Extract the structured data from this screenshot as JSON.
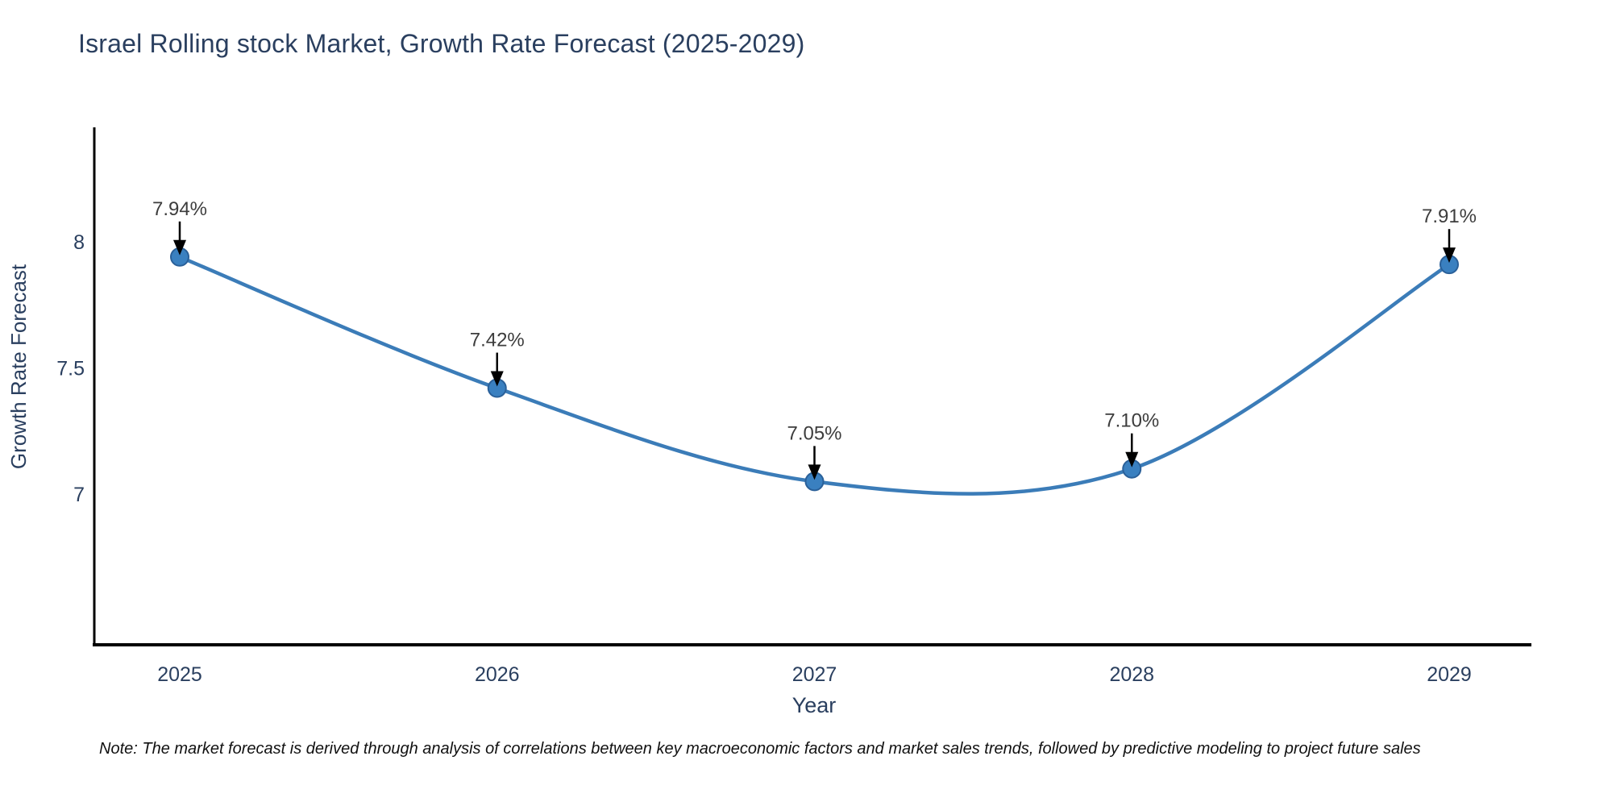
{
  "page": {
    "title": "Israel Rolling stock Market, Growth Rate Forecast (2025-2029)",
    "note": "Note: The market forecast is derived through analysis of correlations between key macroeconomic factors and market sales trends, followed by predictive modeling to project future sales"
  },
  "chart_data": {
    "type": "line",
    "title": "Israel Rolling stock Market, Growth Rate Forecast (2025-2029)",
    "categories": [
      "2025",
      "2026",
      "2027",
      "2028",
      "2029"
    ],
    "series": [
      {
        "name": "Growth Rate Forecast",
        "values": [
          7.94,
          7.42,
          7.05,
          7.1,
          7.91
        ]
      }
    ],
    "point_labels": [
      "7.94%",
      "7.42%",
      "7.05%",
      "7.10%",
      "7.91%"
    ],
    "xlabel": "Year",
    "ylabel": "Growth Rate Forecast",
    "yticks": [
      {
        "value": 8,
        "label": "8"
      },
      {
        "value": 7.5,
        "label": "7.5"
      },
      {
        "value": 7,
        "label": "7"
      }
    ],
    "ylim": [
      6.4,
      8.45
    ],
    "line_shape": "spline",
    "grid": false,
    "legend_position": "none",
    "annotation_style": "value labels with black down-arrows above each data point",
    "colors": {
      "line": "#3b7cb8",
      "marker_fill": "#3a80c0",
      "marker_edge": "#2a6099",
      "axis_line": "#000000",
      "axis_text": "#2a3f5f",
      "annotation_text": "#3d3d3d",
      "arrow": "#000000",
      "title_text": "#2a3f5f",
      "background": "#ffffff"
    }
  }
}
